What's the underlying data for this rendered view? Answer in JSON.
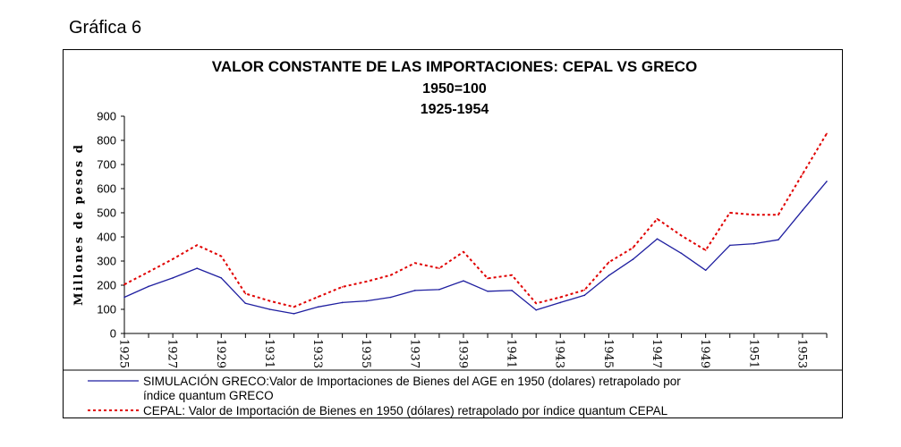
{
  "heading": "Gráfica 6",
  "chart_data": {
    "type": "line",
    "title": "VALOR CONSTANTE DE LAS IMPORTACIONES: CEPAL VS GRECO",
    "subtitle1": "1950=100",
    "subtitle2": "1925-1954",
    "ylabel": "Millones de pesos d",
    "xlabel": "",
    "ylim": [
      0,
      900
    ],
    "yticks": [
      "0",
      "100",
      "200",
      "300",
      "400",
      "500",
      "600",
      "700",
      "800",
      "900"
    ],
    "xticks": [
      "1925",
      "1927",
      "1929",
      "1931",
      "1933",
      "1935",
      "1937",
      "1939",
      "1941",
      "1943",
      "1945",
      "1947",
      "1949",
      "1951",
      "1953"
    ],
    "x": [
      1925,
      1926,
      1927,
      1928,
      1929,
      1930,
      1931,
      1932,
      1933,
      1934,
      1935,
      1936,
      1937,
      1938,
      1939,
      1940,
      1941,
      1942,
      1943,
      1944,
      1945,
      1946,
      1947,
      1948,
      1949,
      1950,
      1951,
      1952,
      1953,
      1954
    ],
    "series": [
      {
        "name": "greco",
        "label": "SIMULACIÓN GRECO:Valor de Importaciones de Bienes del AGE en 1950 (dolares) retrapolado por índice quantum GRECO",
        "color": "#1f1fa0",
        "values": [
          150,
          195,
          230,
          270,
          230,
          125,
          100,
          82,
          110,
          128,
          135,
          150,
          178,
          182,
          218,
          175,
          178,
          97,
          128,
          158,
          240,
          307,
          392,
          332,
          262,
          365,
          372,
          388,
          510,
          630
        ]
      },
      {
        "name": "cepal",
        "label": "CEPAL: Valor de Importación de Bienes en 1950 (dólares) retrapolado por índice quantum CEPAL",
        "color": "#e00000",
        "values": [
          203,
          255,
          308,
          366,
          320,
          165,
          135,
          110,
          152,
          193,
          215,
          242,
          292,
          270,
          338,
          228,
          242,
          125,
          150,
          180,
          295,
          355,
          475,
          405,
          345,
          500,
          492,
          492,
          660,
          828
        ]
      }
    ],
    "grid": false,
    "legend": "bottom"
  }
}
